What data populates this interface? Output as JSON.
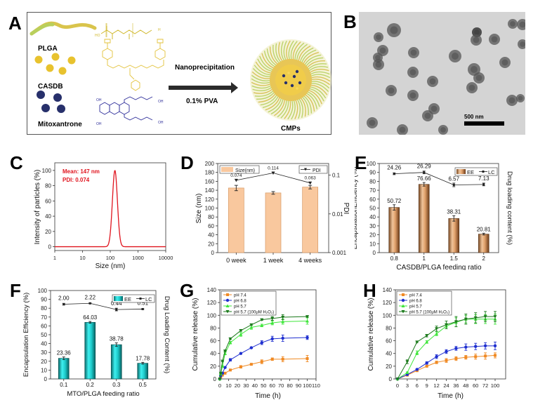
{
  "panels": {
    "A": {
      "label": "A",
      "components": [
        "PLGA",
        "CASDB",
        "Mitoxantrone"
      ],
      "arrow_top": "Nanoprecipitation",
      "arrow_bottom": "0.1%  PVA",
      "product": "CMPs",
      "colors": {
        "plga": "#d6c24a",
        "casdb": "#e8c22e",
        "mito": "#27306b",
        "mito_struct": "#2e2e9a",
        "plga_struct": "#d1b82c"
      }
    },
    "B": {
      "label": "B",
      "scale_bar": "500 nm"
    },
    "C": {
      "label": "C"
    },
    "D": {
      "label": "D"
    },
    "E": {
      "label": "E"
    },
    "F": {
      "label": "F"
    },
    "G": {
      "label": "G"
    },
    "H": {
      "label": "H"
    }
  },
  "chart_data": [
    {
      "id": "C",
      "type": "line",
      "title": "",
      "xlabel": "Size (nm)",
      "ylabel": "Intensity of particles (%)",
      "xscale": "log",
      "xlim": [
        1,
        10000
      ],
      "ylim": [
        -5,
        110
      ],
      "xticks": [
        "1",
        "10",
        "100",
        "1000",
        "10000"
      ],
      "yticks": [
        "0",
        "20",
        "40",
        "60",
        "80",
        "100"
      ],
      "annotations": [
        "Mean: 147 nm",
        "PDI: 0.074"
      ],
      "series": [
        {
          "name": "size distribution",
          "color": "#e0141e",
          "peak_x": 147,
          "peak_y": 100,
          "log_sigma": 0.09
        }
      ]
    },
    {
      "id": "D",
      "type": "bar",
      "categories": [
        "0 week",
        "1 week",
        "4 weeks"
      ],
      "ylabel": "Size (nm)",
      "y2label": "PDI",
      "ylim": [
        0,
        200
      ],
      "yticks": [
        "0",
        "20",
        "40",
        "60",
        "80",
        "100",
        "120",
        "140",
        "160",
        "180",
        "200"
      ],
      "y2scale": "log",
      "y2lim": [
        0.001,
        0.2
      ],
      "y2ticks": [
        "0.001",
        "0.01",
        "0.1"
      ],
      "legend": [
        "Size(nm)",
        "PDI"
      ],
      "series": [
        {
          "name": "Size(nm)",
          "type": "bar",
          "values": [
            145,
            134,
            147
          ],
          "errors": [
            6,
            3,
            4
          ],
          "color": "#f9c89e"
        },
        {
          "name": "PDI",
          "type": "line",
          "values": [
            0.074,
            0.114,
            0.063
          ],
          "labels": [
            "0.074",
            "0.114",
            "0.063"
          ],
          "color": "#000000"
        }
      ]
    },
    {
      "id": "E",
      "type": "bar",
      "categories": [
        "0.8",
        "1",
        "1.5",
        "2"
      ],
      "xlabel": "CASDB/PLGA feeding ratio",
      "ylabel": "EncapsulationEfficiency (%)",
      "y2label": "Drug loading content (%)",
      "ylim": [
        0,
        100
      ],
      "yticks": [
        "0",
        "10",
        "20",
        "30",
        "40",
        "50",
        "60",
        "70",
        "80",
        "90",
        "100"
      ],
      "legend": [
        "EE",
        "LC"
      ],
      "series": [
        {
          "name": "EE",
          "type": "bar",
          "values": [
            50.72,
            76.66,
            38.31,
            20.81
          ],
          "labels": [
            "50.72",
            "76.66",
            "38.31",
            "20.81"
          ],
          "errors": [
            3,
            2,
            3,
            1
          ],
          "color": "#c98a55"
        },
        {
          "name": "LC",
          "type": "line",
          "values": [
            24.26,
            26.29,
            6.57,
            7.13
          ],
          "labels": [
            "24.26",
            "26.29",
            "6.57",
            "7.13"
          ],
          "plot_y": [
            88.5,
            90,
            76,
            76.5
          ],
          "errors": [
            1,
            1.5,
            2,
            1.5
          ],
          "color": "#000000"
        }
      ]
    },
    {
      "id": "F",
      "type": "bar",
      "categories": [
        "0.1",
        "0.2",
        "0.3",
        "0.5"
      ],
      "xlabel": "MTO/PLGA feeding ratio",
      "ylabel": "Encapsulation Efficiency (%)",
      "y2label": "Drug Loading Content (%)",
      "ylim": [
        0,
        100
      ],
      "yticks": [
        "0",
        "10",
        "20",
        "30",
        "40",
        "50",
        "60",
        "70",
        "80",
        "90",
        "100"
      ],
      "legend": [
        "EE",
        "LC"
      ],
      "series": [
        {
          "name": "EE",
          "type": "bar",
          "values": [
            23.36,
            64.03,
            38.78,
            17.78
          ],
          "labels": [
            "23.36",
            "64.03",
            "38.78",
            "17.78"
          ],
          "errors": [
            1.5,
            1,
            2,
            1
          ],
          "color": "#1cc8c8"
        },
        {
          "name": "LC",
          "type": "line",
          "values": [
            2.0,
            2.22,
            0.44,
            0.51
          ],
          "labels": [
            "2.00",
            "2.22",
            "0.44",
            "0.51"
          ],
          "plot_y": [
            84.5,
            85.5,
            78.5,
            79
          ],
          "errors": [
            1,
            0.5,
            1.5,
            0.5
          ],
          "color": "#000000"
        }
      ]
    },
    {
      "id": "G",
      "type": "line",
      "xlabel": "Time (h)",
      "ylabel": "Cumulative release (%)",
      "xlim": [
        0,
        110
      ],
      "ylim": [
        0,
        140
      ],
      "xticks": [
        "0",
        "10",
        "20",
        "30",
        "40",
        "50",
        "60",
        "70",
        "80",
        "90",
        "100",
        "110"
      ],
      "yticks": [
        "0",
        "20",
        "40",
        "60",
        "80",
        "100",
        "120",
        "140"
      ],
      "legend": [
        "pH 7.4",
        "pH 6.8",
        "pH 5.7",
        "pH 5.7 (100μM H2O2)"
      ],
      "x": [
        0,
        1,
        3,
        6,
        12,
        24,
        36,
        48,
        60,
        72,
        100
      ],
      "series": [
        {
          "name": "pH 7.4",
          "marker": "square",
          "color": "#f08a24",
          "values": [
            0,
            3,
            6,
            9,
            14,
            19,
            23,
            27,
            31,
            31,
            32
          ],
          "errors": [
            0,
            1,
            1,
            1,
            1,
            2,
            1,
            3,
            2,
            4,
            5
          ]
        },
        {
          "name": "pH 6.8",
          "marker": "circle",
          "color": "#1f2fd0",
          "values": [
            0,
            5,
            9,
            18,
            30,
            40,
            49,
            57,
            63,
            64,
            65
          ],
          "errors": [
            0,
            1,
            1,
            1,
            2,
            1,
            1,
            3,
            4,
            5,
            3
          ]
        },
        {
          "name": "pH 5.7",
          "marker": "triangle-up",
          "color": "#3ee63a",
          "values": [
            0,
            8,
            20,
            40,
            57,
            70,
            81,
            84,
            88,
            90,
            91
          ],
          "errors": [
            0,
            1,
            1,
            2,
            2,
            3,
            3,
            2,
            3,
            4,
            5
          ]
        },
        {
          "name": "pH 5.7 (100μM H2O2)",
          "marker": "triangle-down",
          "color": "#1c7a1c",
          "values": [
            0,
            9,
            28,
            44,
            63,
            76,
            85,
            93,
            95,
            97,
            98
          ],
          "errors": [
            0,
            1,
            1,
            1,
            1,
            1,
            1,
            1,
            3,
            4,
            1
          ]
        }
      ]
    },
    {
      "id": "H",
      "type": "line",
      "xlabel": "Time (h)",
      "ylabel": "Cumulative release (%)",
      "xscale": "categorical",
      "ylim": [
        0,
        140
      ],
      "xticks": [
        "0",
        "3",
        "6",
        "9",
        "12",
        "24",
        "36",
        "48",
        "60",
        "72",
        "100"
      ],
      "yticks": [
        "0",
        "20",
        "40",
        "60",
        "80",
        "100",
        "120",
        "140"
      ],
      "legend": [
        "pH 7.4",
        "pH 6.8",
        "pH 5.7",
        "pH 5.7 (100μM H2O2)"
      ],
      "series": [
        {
          "name": "pH 7.4",
          "marker": "square",
          "color": "#f08a24",
          "values": [
            0,
            6,
            13,
            20,
            26,
            29,
            32,
            34,
            35,
            36,
            37
          ],
          "errors": [
            0,
            1,
            1,
            1,
            2,
            3,
            3,
            3,
            4,
            5,
            4
          ]
        },
        {
          "name": "pH 6.8",
          "marker": "circle",
          "color": "#1f2fd0",
          "values": [
            0,
            7,
            15,
            25,
            35,
            43,
            48,
            50,
            51,
            52,
            52
          ],
          "errors": [
            0,
            1,
            1,
            2,
            3,
            3,
            3,
            5,
            5,
            5,
            6
          ]
        },
        {
          "name": "pH 5.7",
          "marker": "triangle-up",
          "color": "#3ee63a",
          "values": [
            0,
            10,
            41,
            58,
            71,
            83,
            89,
            94,
            94,
            94,
            94
          ],
          "errors": [
            0,
            1,
            3,
            2,
            3,
            4,
            7,
            6,
            7,
            7,
            8
          ]
        },
        {
          "name": "pH 5.7 (100μM H2O2)",
          "marker": "triangle-down",
          "color": "#1c7a1c",
          "values": [
            0,
            27,
            58,
            68,
            79,
            85,
            90,
            94,
            96,
            98,
            98
          ],
          "errors": [
            0,
            3,
            1,
            2,
            4,
            6,
            8,
            8,
            8,
            8,
            8
          ]
        }
      ]
    }
  ]
}
